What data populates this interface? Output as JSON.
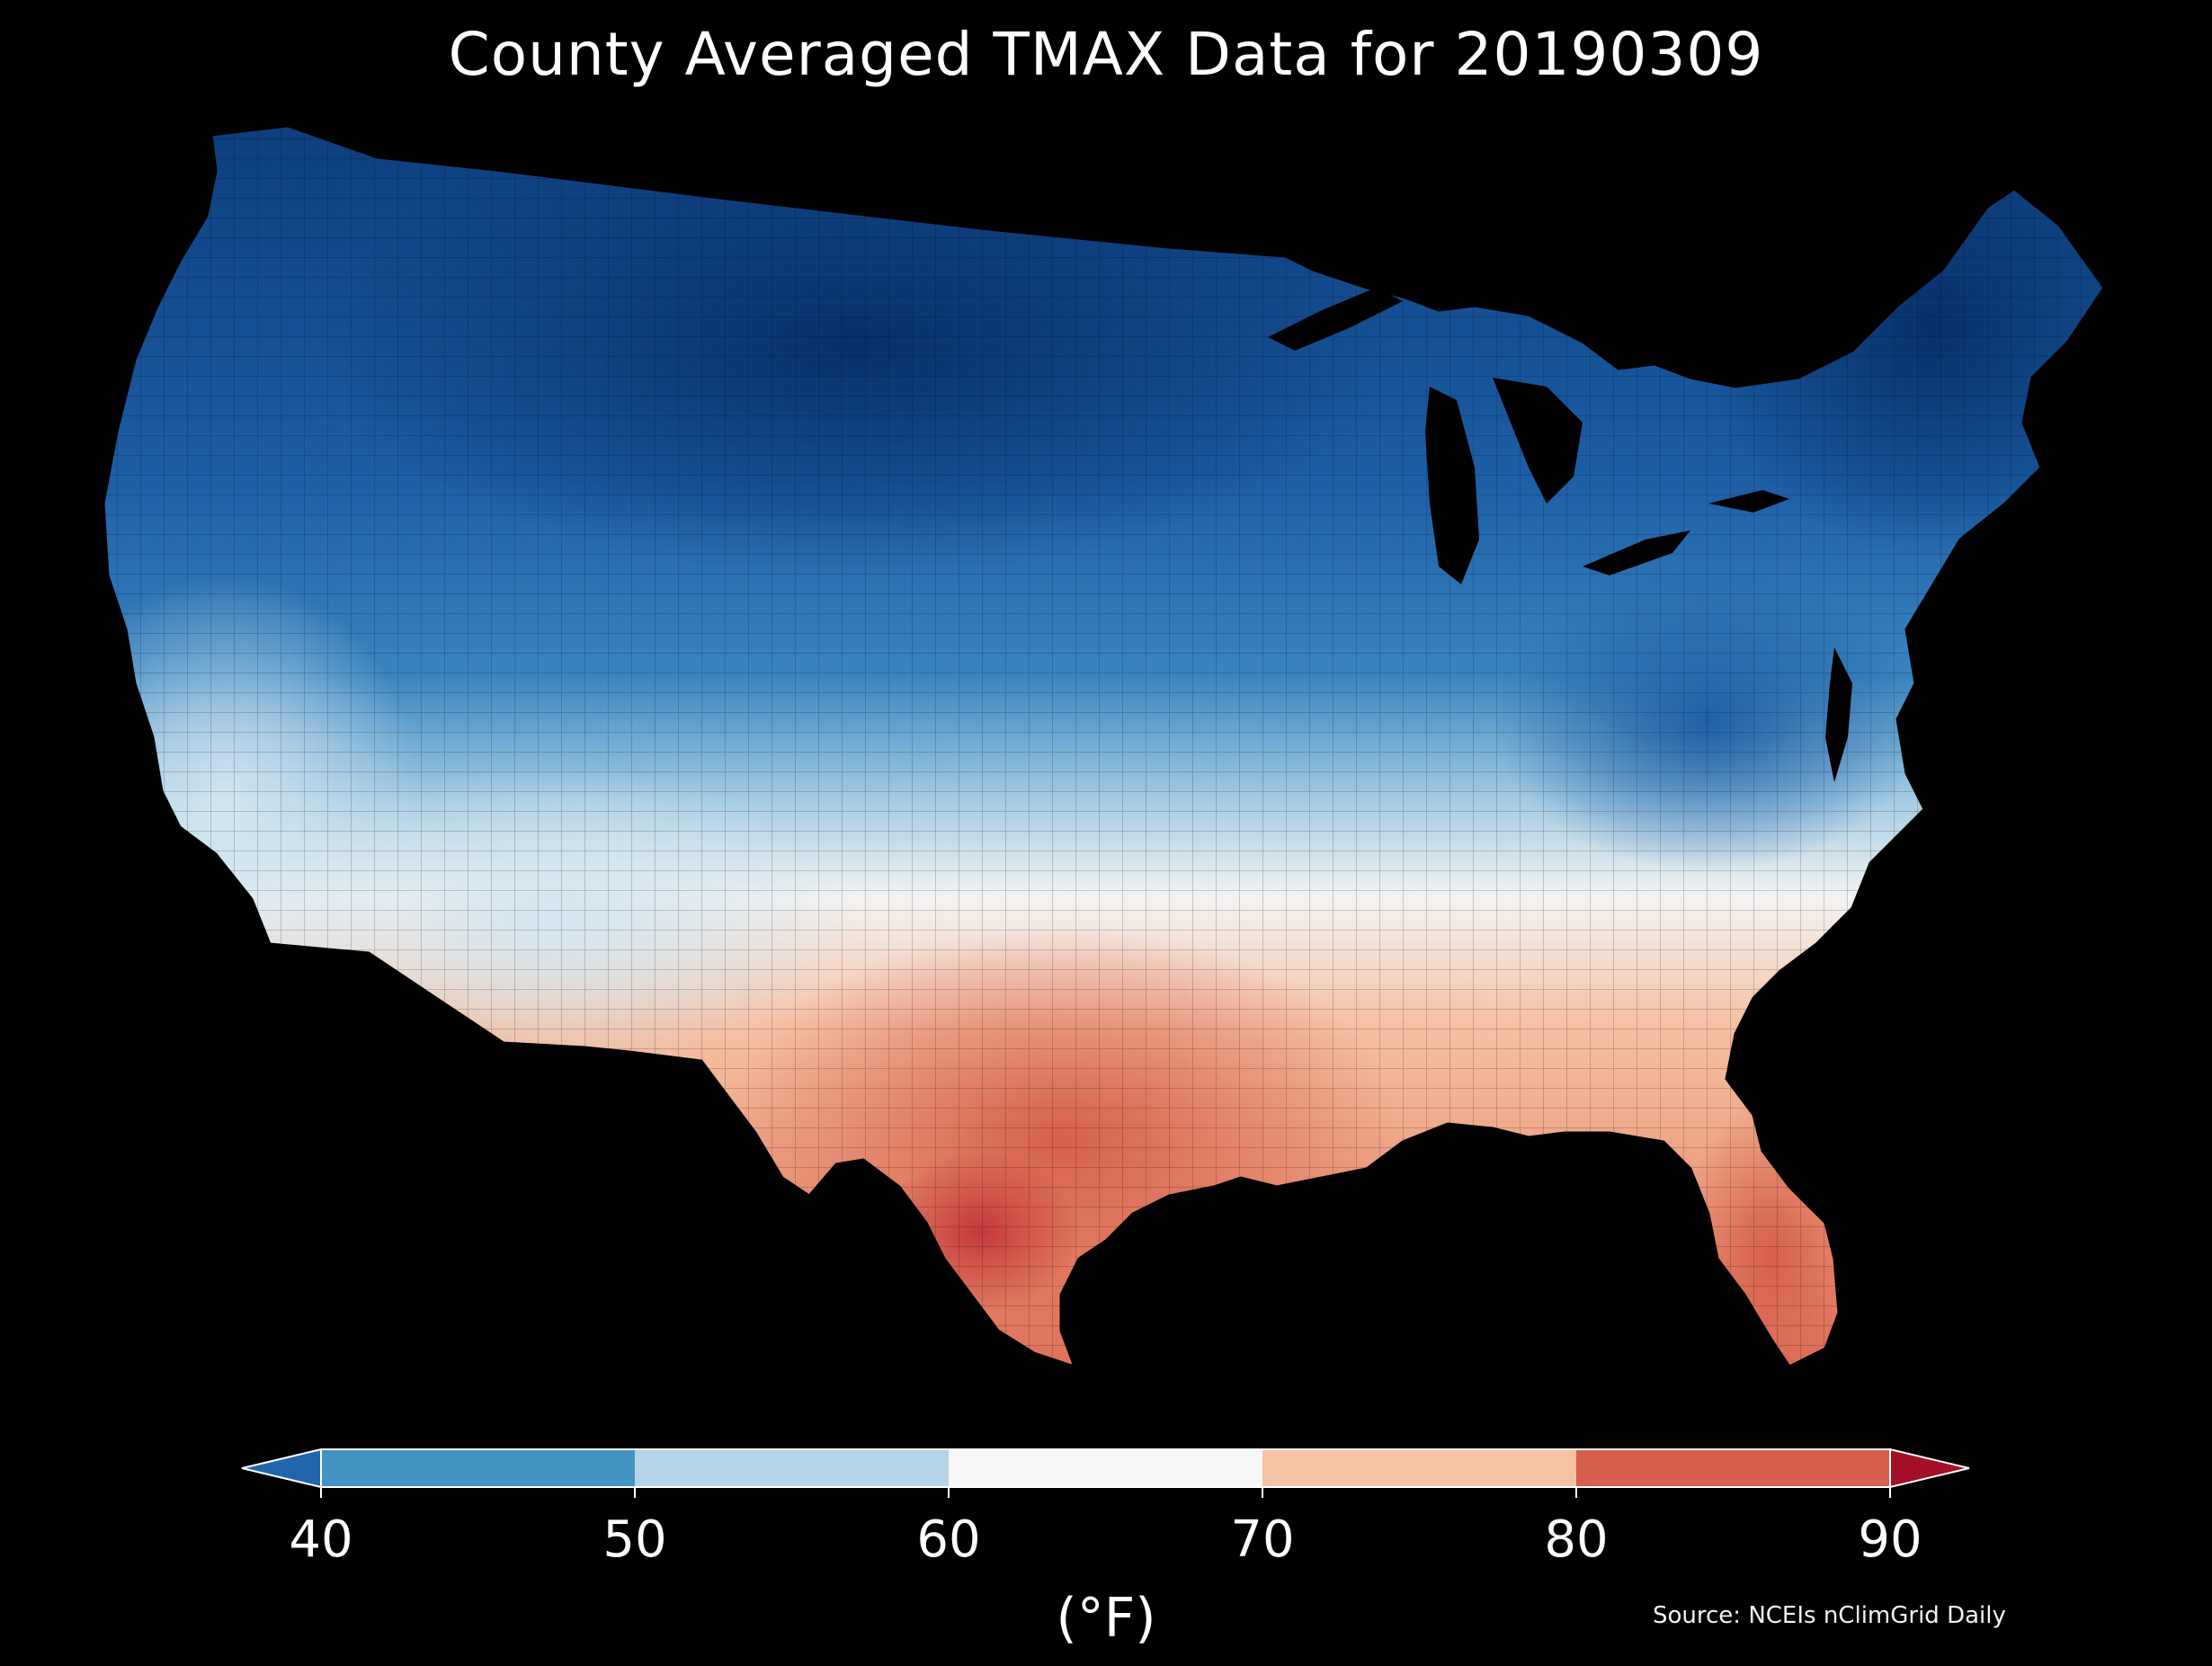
{
  "title": "County Averaged TMAX Data for 20190309",
  "colorbar": {
    "ticks": [
      "40",
      "50",
      "60",
      "70",
      "80",
      "90"
    ],
    "unit": "(°F)",
    "bins": [
      {
        "range": "<40",
        "color": "#2166ac"
      },
      {
        "range": "40-50",
        "color": "#4393c3"
      },
      {
        "range": "50-60",
        "color": "#b3d5e8"
      },
      {
        "range": "60-70",
        "color": "#f7f7f7"
      },
      {
        "range": "70-80",
        "color": "#f7c3a5"
      },
      {
        "range": "80-90",
        "color": "#d6604d"
      },
      {
        "range": ">90",
        "color": "#a50f28"
      }
    ]
  },
  "source": "Source: NCEIs nClimGrid Daily",
  "map_colors": {
    "coldest": "#08306b",
    "cold": "#2166ac",
    "cool": "#4393c3",
    "mild": "#b3d5e8",
    "neutral": "#f7f7f7",
    "warm": "#f4a582",
    "hot": "#d6604d",
    "hottest": "#c2363a"
  }
}
